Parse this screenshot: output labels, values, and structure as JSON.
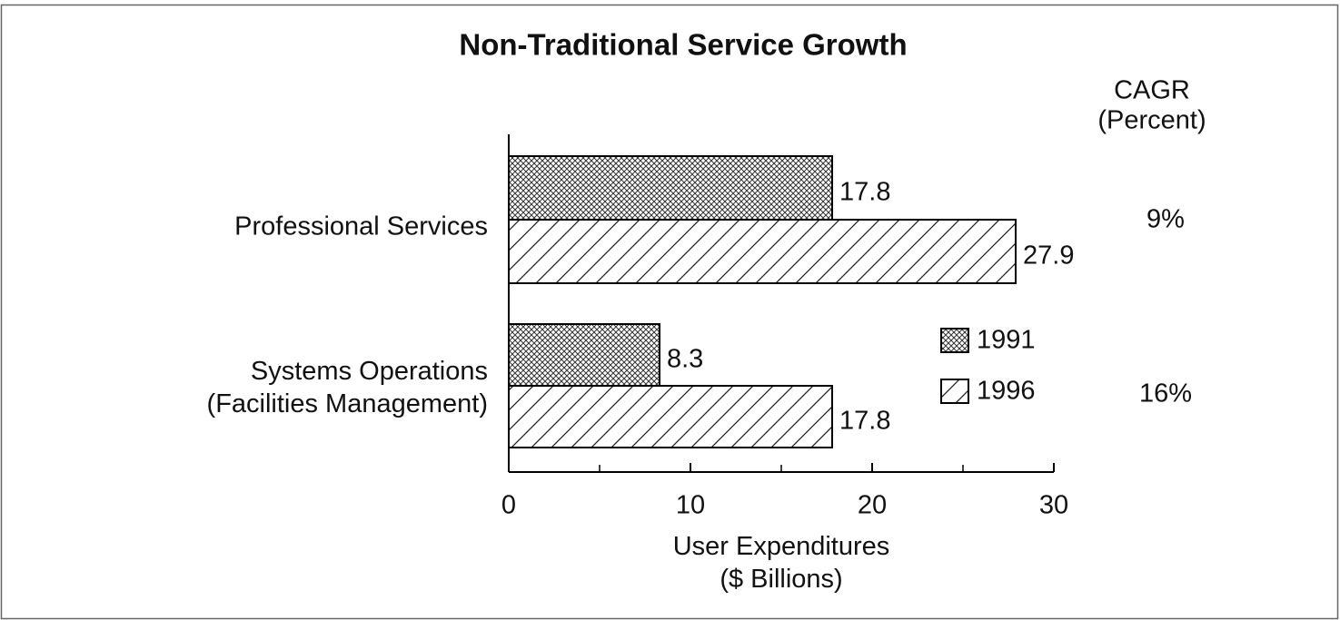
{
  "chart_data": {
    "type": "hbar",
    "title": "Non-Traditional Service Growth",
    "categories": [
      "Professional Services",
      "Systems Operations\n(Facilities Management)"
    ],
    "series": [
      {
        "name": "1991",
        "color": "#000000",
        "pattern": "crosshatch",
        "values": [
          17.8,
          8.3
        ]
      },
      {
        "name": "1996",
        "color": "#000000",
        "pattern": "diagonal",
        "values": [
          27.9,
          17.8
        ]
      }
    ],
    "xlabel": "User Expenditures\n($ Billions)",
    "xlim": [
      0,
      30
    ],
    "xticks": [
      0,
      10,
      20,
      30
    ],
    "minor_xticks": [
      5,
      15,
      25
    ],
    "legend": "right",
    "cagr": {
      "title": "CAGR\n(Percent)",
      "values": [
        9,
        16
      ],
      "value_labels": [
        "9%",
        "16%"
      ]
    }
  }
}
